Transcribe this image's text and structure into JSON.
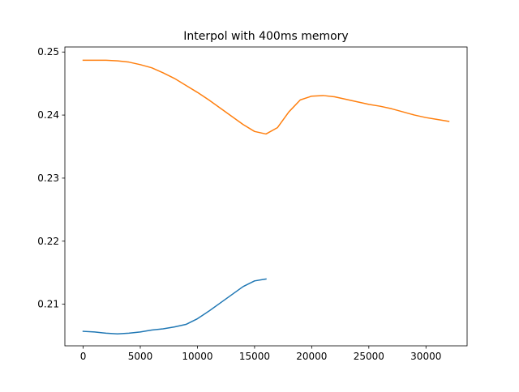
{
  "chart_data": {
    "type": "line",
    "title": "Interpol with 400ms memory",
    "xlabel": "",
    "ylabel": "",
    "xlim": [
      -1600,
      33600
    ],
    "ylim": [
      0.2034,
      0.2508
    ],
    "x_ticks": [
      0,
      5000,
      10000,
      15000,
      20000,
      25000,
      30000
    ],
    "x_tick_labels": [
      "0",
      "5000",
      "10000",
      "15000",
      "20000",
      "25000",
      "30000"
    ],
    "y_ticks": [
      0.21,
      0.22,
      0.23,
      0.24,
      0.25
    ],
    "y_tick_labels": [
      "0.21",
      "0.22",
      "0.23",
      "0.24",
      "0.25"
    ],
    "grid": false,
    "legend": "none",
    "series": [
      {
        "color": "#1f77b4",
        "x": [
          0,
          1000,
          2000,
          3000,
          4000,
          5000,
          6000,
          7000,
          8000,
          9000,
          10000,
          11000,
          12000,
          13000,
          14000,
          15000,
          16000
        ],
        "y": [
          0.2057,
          0.2056,
          0.2054,
          0.2053,
          0.2054,
          0.2056,
          0.2059,
          0.2061,
          0.2064,
          0.2068,
          0.2077,
          0.2089,
          0.2102,
          0.2115,
          0.2128,
          0.2137,
          0.214
        ]
      },
      {
        "color": "#ff7f0e",
        "x": [
          0,
          1000,
          2000,
          3000,
          4000,
          5000,
          6000,
          7000,
          8000,
          9000,
          10000,
          11000,
          12000,
          13000,
          14000,
          15000,
          16000,
          17000,
          18000,
          19000,
          20000,
          21000,
          22000,
          23000,
          24000,
          25000,
          26000,
          27000,
          28000,
          29000,
          30000,
          31000,
          32000
        ],
        "y": [
          0.2487,
          0.2487,
          0.2487,
          0.2486,
          0.2484,
          0.248,
          0.2475,
          0.2467,
          0.2458,
          0.2447,
          0.2436,
          0.2424,
          0.2411,
          0.2398,
          0.2385,
          0.2374,
          0.237,
          0.238,
          0.2405,
          0.2424,
          0.243,
          0.2431,
          0.2429,
          0.2425,
          0.2421,
          0.2417,
          0.2414,
          0.241,
          0.2405,
          0.24,
          0.2396,
          0.2393,
          0.239
        ]
      }
    ]
  }
}
